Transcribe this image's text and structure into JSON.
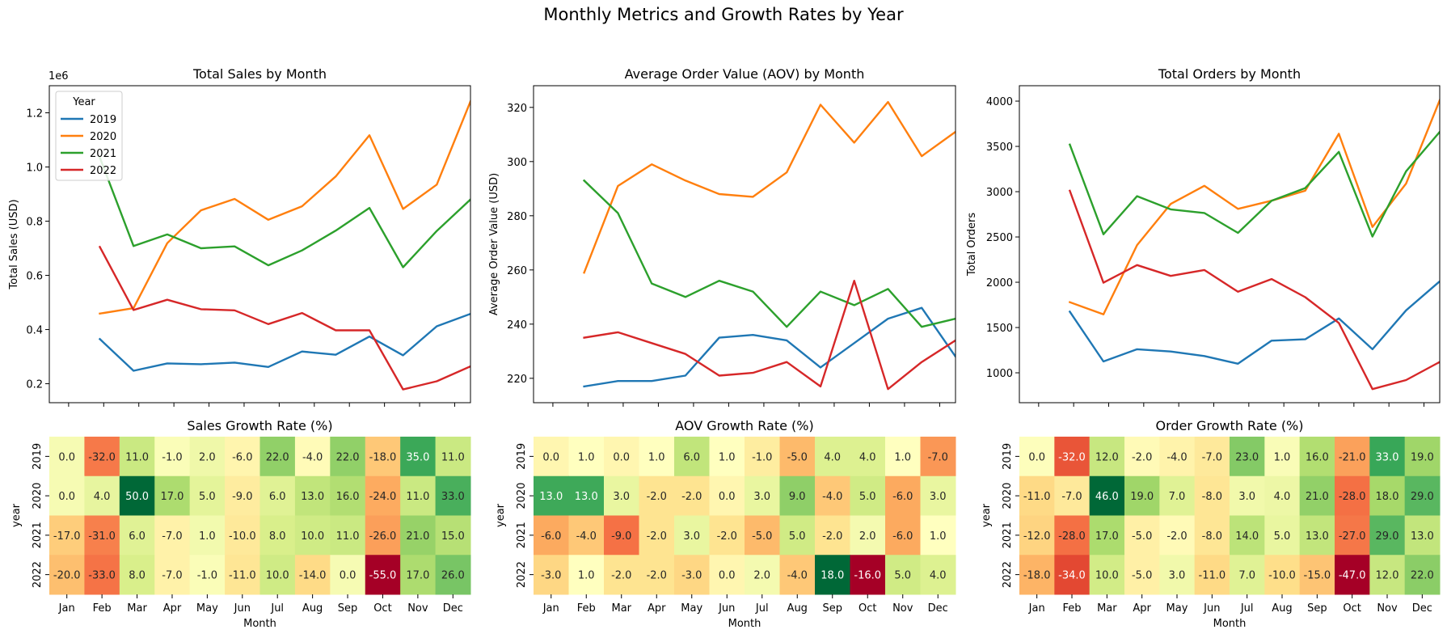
{
  "suptitle": "Monthly Metrics and Growth Rates by Year",
  "colors": {
    "2019": "#1f77b4",
    "2020": "#ff7f0e",
    "2021": "#2ca02c",
    "2022": "#d62728"
  },
  "heatmap_colormap": "RdYlGn",
  "chart_data": [
    {
      "type": "line",
      "title": "Total Sales by Month",
      "xlabel": "",
      "ylabel": "Total Sales (USD)",
      "y_offset_label": "1e6",
      "ylim": [
        0.13,
        1.3
      ],
      "yticks": [
        0.2,
        0.4,
        0.6,
        0.8,
        1.0,
        1.2
      ],
      "ytick_labels": [
        "0.2",
        "0.4",
        "0.6",
        "0.8",
        "1.0",
        "1.2"
      ],
      "categories": [
        "Jan",
        "Feb",
        "Mar",
        "Apr",
        "May",
        "Jun",
        "Jul",
        "Aug",
        "Sep",
        "Oct",
        "Nov",
        "Dec"
      ],
      "legend": {
        "title": "Year",
        "placement": "upper-left"
      },
      "series": [
        {
          "name": "2019",
          "values": [
            0.365,
            0.248,
            0.275,
            0.272,
            0.278,
            0.262,
            0.319,
            0.307,
            0.374,
            0.305,
            0.412,
            0.458
          ]
        },
        {
          "name": "2020",
          "values": [
            0.459,
            0.479,
            0.719,
            0.84,
            0.882,
            0.805,
            0.855,
            0.965,
            1.117,
            0.845,
            0.935,
            1.242
          ]
        },
        {
          "name": "2021",
          "values": [
            1.035,
            0.708,
            0.751,
            0.7,
            0.707,
            0.637,
            0.692,
            0.765,
            0.849,
            0.63,
            0.764,
            0.88
          ]
        },
        {
          "name": "2022",
          "values": [
            0.705,
            0.472,
            0.51,
            0.475,
            0.471,
            0.42,
            0.461,
            0.397,
            0.397,
            0.179,
            0.209,
            0.264
          ]
        }
      ]
    },
    {
      "type": "line",
      "title": "Average Order Value (AOV) by Month",
      "xlabel": "",
      "ylabel": "Average Order Value (USD)",
      "ylim": [
        211,
        328
      ],
      "yticks": [
        220,
        240,
        260,
        280,
        300,
        320
      ],
      "ytick_labels": [
        "220",
        "240",
        "260",
        "280",
        "300",
        "320"
      ],
      "categories": [
        "Jan",
        "Feb",
        "Mar",
        "Apr",
        "May",
        "Jun",
        "Jul",
        "Aug",
        "Sep",
        "Oct",
        "Nov",
        "Dec"
      ],
      "series": [
        {
          "name": "2019",
          "values": [
            217,
            219,
            219,
            221,
            235,
            236,
            234,
            224,
            233,
            242,
            246,
            228
          ]
        },
        {
          "name": "2020",
          "values": [
            259,
            291,
            299,
            293,
            288,
            287,
            296,
            321,
            307,
            322,
            302,
            311
          ]
        },
        {
          "name": "2021",
          "values": [
            293,
            281,
            255,
            250,
            256,
            252,
            239,
            252,
            247,
            253,
            239,
            242
          ]
        },
        {
          "name": "2022",
          "values": [
            235,
            237,
            233,
            229,
            221,
            222,
            226,
            217,
            256,
            216,
            226,
            234
          ]
        }
      ]
    },
    {
      "type": "line",
      "title": "Total Orders by Month",
      "xlabel": "",
      "ylabel": "Total Orders",
      "ylim": [
        670,
        4170
      ],
      "yticks": [
        1000,
        1500,
        2000,
        2500,
        3000,
        3500,
        4000
      ],
      "ytick_labels": [
        "1000",
        "1500",
        "2000",
        "2500",
        "3000",
        "3500",
        "4000"
      ],
      "categories": [
        "Jan",
        "Feb",
        "Mar",
        "Apr",
        "May",
        "Jun",
        "Jul",
        "Aug",
        "Sep",
        "Oct",
        "Nov",
        "Dec"
      ],
      "series": [
        {
          "name": "2019",
          "values": [
            1675,
            1125,
            1260,
            1235,
            1185,
            1100,
            1355,
            1370,
            1600,
            1260,
            1690,
            2010
          ]
        },
        {
          "name": "2020",
          "values": [
            1780,
            1645,
            2410,
            2865,
            3065,
            2810,
            2900,
            3010,
            3640,
            2610,
            3090,
            4010
          ]
        },
        {
          "name": "2021",
          "values": [
            3520,
            2530,
            2950,
            2805,
            2765,
            2545,
            2900,
            3040,
            3440,
            2505,
            3225,
            3660
          ]
        },
        {
          "name": "2022",
          "values": [
            3010,
            1995,
            2190,
            2070,
            2135,
            1895,
            2035,
            1835,
            1550,
            820,
            920,
            1120
          ]
        }
      ]
    },
    {
      "type": "heatmap",
      "title": "Sales Growth Rate (%)",
      "xlabel": "Month",
      "ylabel": "year",
      "vmin": -55,
      "vmax": 50,
      "x": [
        "Jan",
        "Feb",
        "Mar",
        "Apr",
        "May",
        "Jun",
        "Jul",
        "Aug",
        "Sep",
        "Oct",
        "Nov",
        "Dec"
      ],
      "y": [
        "2019",
        "2020",
        "2021",
        "2022"
      ],
      "values": [
        [
          "0.0",
          "-32.0",
          "11.0",
          "-1.0",
          "2.0",
          "-6.0",
          "22.0",
          "-4.0",
          "22.0",
          "-18.0",
          "35.0",
          "11.0"
        ],
        [
          "0.0",
          "4.0",
          "50.0",
          "17.0",
          "5.0",
          "-9.0",
          "6.0",
          "13.0",
          "16.0",
          "-24.0",
          "11.0",
          "33.0"
        ],
        [
          "-17.0",
          "-31.0",
          "6.0",
          "-7.0",
          "1.0",
          "-10.0",
          "8.0",
          "10.0",
          "11.0",
          "-26.0",
          "21.0",
          "15.0"
        ],
        [
          "-20.0",
          "-33.0",
          "8.0",
          "-7.0",
          "-1.0",
          "-11.0",
          "10.0",
          "-14.0",
          "0.0",
          "-55.0",
          "17.0",
          "26.0"
        ]
      ]
    },
    {
      "type": "heatmap",
      "title": "AOV Growth Rate (%)",
      "xlabel": "Month",
      "ylabel": "year",
      "vmin": -16,
      "vmax": 18,
      "x": [
        "Jan",
        "Feb",
        "Mar",
        "Apr",
        "May",
        "Jun",
        "Jul",
        "Aug",
        "Sep",
        "Oct",
        "Nov",
        "Dec"
      ],
      "y": [
        "2019",
        "2020",
        "2021",
        "2022"
      ],
      "values": [
        [
          "0.0",
          "1.0",
          "0.0",
          "1.0",
          "6.0",
          "1.0",
          "-1.0",
          "-5.0",
          "4.0",
          "4.0",
          "1.0",
          "-7.0"
        ],
        [
          "13.0",
          "13.0",
          "3.0",
          "-2.0",
          "-2.0",
          "0.0",
          "3.0",
          "9.0",
          "-4.0",
          "5.0",
          "-6.0",
          "3.0"
        ],
        [
          "-6.0",
          "-4.0",
          "-9.0",
          "-2.0",
          "3.0",
          "-2.0",
          "-5.0",
          "5.0",
          "-2.0",
          "2.0",
          "-6.0",
          "1.0"
        ],
        [
          "-3.0",
          "1.0",
          "-2.0",
          "-2.0",
          "-3.0",
          "0.0",
          "2.0",
          "-4.0",
          "18.0",
          "-16.0",
          "5.0",
          "4.0"
        ]
      ]
    },
    {
      "type": "heatmap",
      "title": "Order Growth Rate (%)",
      "xlabel": "Month",
      "ylabel": "year",
      "vmin": -47,
      "vmax": 46,
      "x": [
        "Jan",
        "Feb",
        "Mar",
        "Apr",
        "May",
        "Jun",
        "Jul",
        "Aug",
        "Sep",
        "Oct",
        "Nov",
        "Dec"
      ],
      "y": [
        "2019",
        "2020",
        "2021",
        "2022"
      ],
      "values": [
        [
          "0.0",
          "-32.0",
          "12.0",
          "-2.0",
          "-4.0",
          "-7.0",
          "23.0",
          "1.0",
          "16.0",
          "-21.0",
          "33.0",
          "19.0"
        ],
        [
          "-11.0",
          "-7.0",
          "46.0",
          "19.0",
          "7.0",
          "-8.0",
          "3.0",
          "4.0",
          "21.0",
          "-28.0",
          "18.0",
          "29.0"
        ],
        [
          "-12.0",
          "-28.0",
          "17.0",
          "-5.0",
          "-2.0",
          "-8.0",
          "14.0",
          "5.0",
          "13.0",
          "-27.0",
          "29.0",
          "13.0"
        ],
        [
          "-18.0",
          "-34.0",
          "10.0",
          "-5.0",
          "3.0",
          "-11.0",
          "7.0",
          "-10.0",
          "-15.0",
          "-47.0",
          "12.0",
          "22.0"
        ]
      ]
    }
  ]
}
